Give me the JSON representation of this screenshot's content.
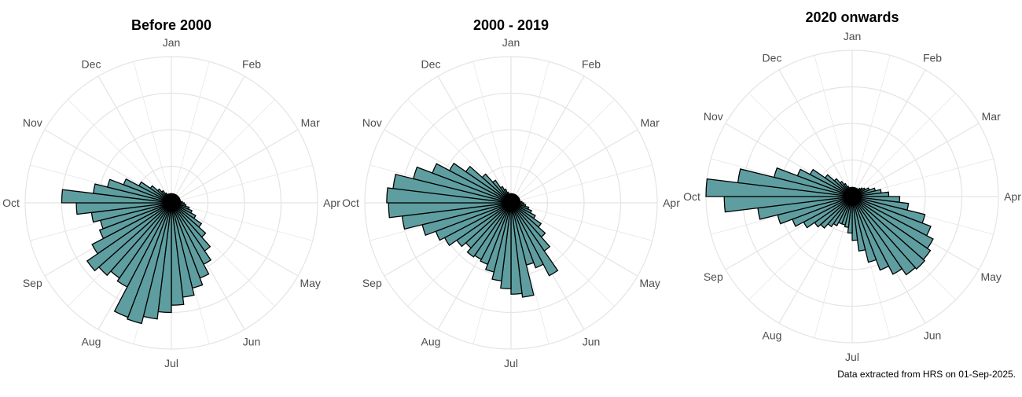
{
  "caption": "Data extracted from HRS on 01-Sep-2025.",
  "colors": {
    "fill": "#5f9ea0",
    "stroke": "#000000",
    "grid": "#e4e4e4",
    "month_label": "#4d4d4d"
  },
  "chart_data": [
    {
      "type": "bar",
      "polar": true,
      "title": "Before 2000",
      "month_labels": [
        "Jan",
        "Feb",
        "Mar",
        "Apr",
        "May",
        "Jun",
        "Jul",
        "Aug",
        "Sep",
        "Oct",
        "Nov",
        "Dec"
      ],
      "bins": 52,
      "values": [
        0.5,
        0.5,
        0.5,
        0.5,
        0.5,
        0.5,
        0.5,
        0.5,
        0.5,
        0.5,
        0.5,
        0.5,
        0.6,
        0.7,
        0.8,
        1.0,
        1.2,
        1.5,
        2.0,
        2.5,
        3.2,
        3.8,
        4.4,
        4.8,
        5.2,
        5.6,
        6.0,
        6.4,
        6.8,
        6.7,
        5.2,
        5.0,
        5.3,
        5.6,
        4.9,
        4.2,
        4.0,
        4.4,
        5.2,
        6.0,
        4.3,
        3.6,
        2.8,
        2.0,
        1.4,
        1.0,
        0.8,
        0.6,
        0.5,
        0.5,
        0.5,
        0.5
      ],
      "rlim": [
        0,
        8
      ],
      "grid": true
    },
    {
      "type": "bar",
      "polar": true,
      "title": "2000 - 2019",
      "month_labels": [
        "Jan",
        "Feb",
        "Mar",
        "Apr",
        "May",
        "Jun",
        "Jul",
        "Aug",
        "Sep",
        "Oct",
        "Nov",
        "Dec"
      ],
      "bins": 52,
      "values": [
        0.5,
        0.5,
        0.5,
        0.5,
        0.5,
        0.5,
        0.5,
        0.5,
        0.5,
        0.5,
        0.5,
        0.5,
        0.6,
        0.7,
        0.8,
        1.0,
        1.2,
        1.5,
        2.0,
        2.5,
        3.2,
        4.5,
        3.8,
        3.5,
        5.2,
        5.0,
        4.7,
        4.3,
        3.9,
        3.6,
        3.5,
        3.6,
        3.3,
        3.6,
        4.1,
        4.4,
        5.0,
        6.0,
        6.7,
        6.8,
        6.5,
        5.5,
        4.6,
        3.8,
        3.0,
        2.1,
        1.5,
        1.0,
        0.8,
        0.6,
        0.5,
        0.5
      ],
      "rlim": [
        0,
        8
      ],
      "grid": true
    },
    {
      "type": "bar",
      "polar": true,
      "title": "2020 onwards",
      "month_labels": [
        "Jan",
        "Feb",
        "Mar",
        "Apr",
        "May",
        "Jun",
        "Jul",
        "Aug",
        "Sep",
        "Oct",
        "Nov",
        "Dec"
      ],
      "bins": 52,
      "values": [
        0.5,
        0.5,
        0.5,
        0.5,
        0.5,
        0.5,
        0.6,
        0.7,
        0.8,
        1.0,
        1.3,
        1.6,
        2.0,
        2.6,
        3.1,
        4.1,
        4.6,
        5.0,
        5.2,
        5.3,
        5.2,
        4.8,
        4.3,
        3.7,
        3.0,
        2.4,
        2.0,
        1.7,
        1.6,
        1.6,
        1.8,
        2.0,
        2.3,
        2.5,
        3.0,
        3.5,
        4.2,
        5.2,
        7.0,
        8.0,
        6.3,
        4.4,
        3.2,
        2.6,
        1.8,
        1.3,
        1.0,
        0.8,
        0.6,
        0.5,
        0.5,
        0.5
      ],
      "rlim": [
        0,
        8
      ],
      "grid": true
    }
  ]
}
